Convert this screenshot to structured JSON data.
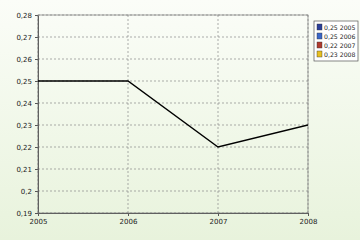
{
  "chart_data": {
    "type": "line",
    "x": [
      2005,
      2006,
      2007,
      2008
    ],
    "values": [
      0.25,
      0.25,
      0.22,
      0.23
    ],
    "color": "#000000",
    "xlim": [
      2005,
      2008
    ],
    "xticks": [
      2005,
      2006,
      2007,
      2008
    ],
    "ylim": [
      0.19,
      0.28
    ],
    "yticks": [
      {
        "value": 0.19,
        "label": "0,19"
      },
      {
        "value": 0.2,
        "label": "0,2"
      },
      {
        "value": 0.21,
        "label": "0,21"
      },
      {
        "value": 0.22,
        "label": "0,22"
      },
      {
        "value": 0.23,
        "label": "0,23"
      },
      {
        "value": 0.24,
        "label": "0,24"
      },
      {
        "value": 0.25,
        "label": "0,25"
      },
      {
        "value": 0.26,
        "label": "0,26"
      },
      {
        "value": 0.27,
        "label": "0,27"
      },
      {
        "value": 0.28,
        "label": "0,28"
      }
    ],
    "grid": true,
    "legend": "right",
    "legend_entries": [
      {
        "label": "0,25 2005",
        "color": "#2a3f9a"
      },
      {
        "label": "0,25 2006",
        "color": "#3a66c8"
      },
      {
        "label": "0,22 2007",
        "color": "#b03a2e"
      },
      {
        "label": "0,23 2008",
        "color": "#e8c020"
      }
    ]
  }
}
